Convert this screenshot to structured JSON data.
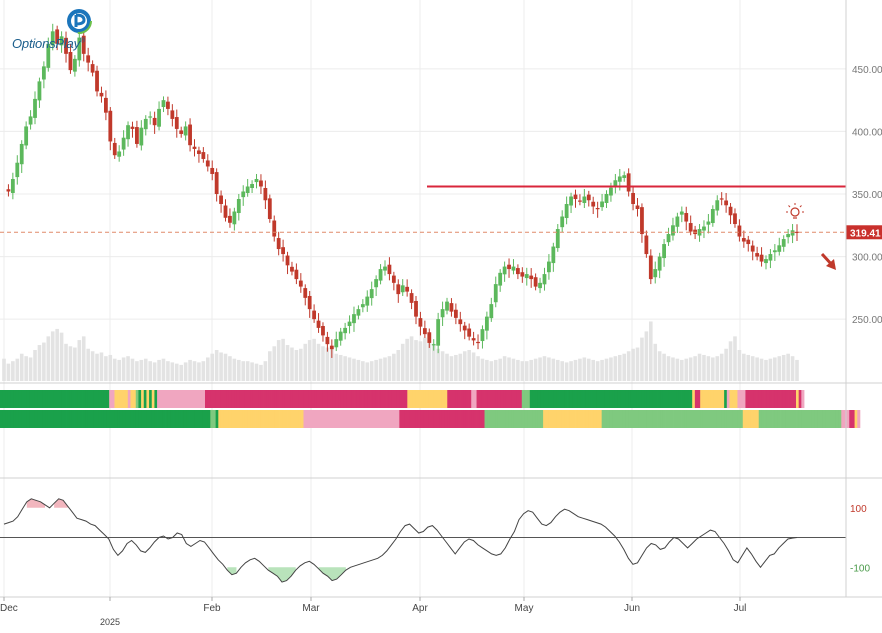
{
  "brand": {
    "name": "OptionsPlay",
    "mark": "®"
  },
  "colors": {
    "up": "#5cb85c",
    "down": "#c0392b",
    "resistance": "#d9263b",
    "current_line": "#e08a6a",
    "price_tag": "#c9302c",
    "volume": "#e3e3e3",
    "hot": "#d6336c",
    "pink": "#f0a6c0",
    "yellow": "#ffd36b",
    "green": "#1aa14b",
    "lightgreen": "#7fc97f",
    "cci_overbought": "#f2b6be",
    "cci_oversold": "#b9e3bb"
  },
  "chart_data": [
    {
      "type": "candlestick",
      "title": "",
      "ylim": [
        200,
        500
      ],
      "y_ticks": [
        "450.00",
        "400.00",
        "350.00",
        "300.00",
        "250.00"
      ],
      "y_tick_values": [
        450,
        400,
        350,
        300,
        250
      ],
      "x_labels": [
        "Dec",
        "2025",
        "Feb",
        "Mar",
        "Apr",
        "May",
        "Jun",
        "Jul"
      ],
      "last_price_label": "319.41",
      "last_price": 319.41,
      "resistance_level": 356,
      "resistance_start": "2025-04-01",
      "closes": [
        355,
        352,
        362,
        375,
        390,
        404,
        412,
        426,
        440,
        452,
        470,
        480,
        470,
        476,
        462,
        449,
        458,
        475,
        462,
        455,
        447,
        432,
        428,
        415,
        392,
        381,
        384,
        395,
        405,
        402,
        390,
        403,
        410,
        412,
        405,
        418,
        425,
        418,
        410,
        402,
        398,
        404,
        389,
        386,
        382,
        378,
        372,
        366,
        350,
        342,
        331,
        327,
        336,
        346,
        352,
        356,
        358,
        362,
        356,
        345,
        330,
        316,
        306,
        302,
        293,
        288,
        282,
        276,
        267,
        258,
        250,
        243,
        237,
        230,
        226,
        234,
        240,
        243,
        248,
        254,
        258,
        262,
        268,
        274,
        282,
        290,
        292,
        286,
        279,
        270,
        277,
        272,
        263,
        252,
        244,
        238,
        231,
        230,
        250,
        258,
        264,
        256,
        251,
        246,
        241,
        236,
        233,
        231,
        242,
        252,
        262,
        278,
        287,
        292,
        290,
        292,
        286,
        284,
        286,
        282,
        276,
        279,
        286,
        296,
        308,
        322,
        332,
        342,
        348,
        346,
        344,
        348,
        345,
        340,
        338,
        344,
        350,
        355,
        361,
        364,
        365,
        352,
        342,
        338,
        318,
        302,
        282,
        290,
        300,
        310,
        318,
        325,
        332,
        336,
        328,
        320,
        318,
        322,
        324,
        328,
        338,
        345,
        346,
        341,
        333,
        326,
        316,
        312,
        310,
        304,
        300,
        296,
        298,
        302,
        305,
        309,
        314,
        318,
        321,
        319.41
      ],
      "volumes": [
        18,
        14,
        16,
        18,
        22,
        20,
        19,
        25,
        29,
        31,
        36,
        40,
        42,
        39,
        30,
        28,
        27,
        33,
        36,
        26,
        24,
        22,
        23,
        20,
        21,
        18,
        17,
        19,
        20,
        18,
        16,
        17,
        18,
        16,
        15,
        17,
        18,
        16,
        15,
        14,
        13,
        15,
        17,
        16,
        15,
        16,
        19,
        22,
        25,
        23,
        22,
        20,
        18,
        17,
        16,
        16,
        15,
        14,
        13,
        16,
        24,
        28,
        33,
        34,
        29,
        27,
        25,
        26,
        30,
        33,
        34,
        30,
        28,
        27,
        26,
        22,
        21,
        20,
        19,
        18,
        17,
        16,
        15,
        16,
        17,
        18,
        19,
        20,
        22,
        25,
        30,
        34,
        36,
        33,
        32,
        35,
        38,
        30,
        26,
        24,
        22,
        20,
        21,
        22,
        24,
        25,
        23,
        20,
        18,
        17,
        16,
        17,
        18,
        20,
        19,
        18,
        17,
        16,
        16,
        17,
        18,
        19,
        20,
        19,
        18,
        17,
        16,
        15,
        16,
        17,
        18,
        19,
        18,
        17,
        16,
        17,
        18,
        19,
        20,
        21,
        22,
        24,
        26,
        27,
        35,
        40,
        48,
        30,
        24,
        22,
        20,
        19,
        18,
        17,
        18,
        19,
        20,
        22,
        21,
        20,
        19,
        20,
        22,
        26,
        32,
        36,
        25,
        22,
        21,
        20,
        19,
        18,
        17,
        18,
        19,
        20,
        21,
        22,
        20,
        17
      ],
      "volume_max": 50
    },
    {
      "type": "heatmap",
      "rows": 2,
      "stripe_colors": [
        "green",
        "lightgreen",
        "pink",
        "yellow",
        "hot",
        "hot",
        "pink"
      ],
      "row1": "GGGGGGGGGGGGGGGGGGGGGGGGGGGGGGGGGGGGGGGGGPPYYYYYPYYLGYGYGYGPPPPPPPPPPPPPPPPPPHHHHHHHHHHHHHHHHHHHHHHHHHHHHHHHHHHHHHHHHHHHHHHHHHHHHHHHHHHHHHHHHHHHHHHHHHHHHYYYYYYYYYYYYYYYHHHHHHHHHPPHHHHHHHHHHHHHHHHHLLLGGGGGGGGGGGGGGGGGGGGGGGGGGGGGGGGGGGGGGGGGGGGGGGGGGGGGGGGGGGGGYHHYYYYYYYYYGPYYYPPPHHHHHHHHHHHHHHHHHHHYHP",
      "row2": "GGGGGGGGGGGGGGGGGGGGGGGGGGGGGGGGGGGGGGGGGGGGGGGGGGGGGGGGGGGGGGGGGGGGGGGGGGGGGGGLLGYYYYYYYYYYYYYYYYYYYYYYYYYYYYYYYYPPPPPPPPPPPPPPPPPPPPPPPPPPPPPPPPPPPPHHHHHHHHHHHHHHHHHHHHHHHHHHHHHHHHLLLLLLLLLLLLLLLLLLLLLLYYYYYYYYYYYYYYYYYYYYYYLLLLLLLLLLLLLLLLLLLLLLLLLLLLLLLLLLLLLLLLLLLLLLLLLLLLLYYYYYYLLLLLLLLLLLLLLLLLLLLLLLLLLLLLLLPPPHHYP"
    },
    {
      "type": "line",
      "ylim": [
        -200,
        200
      ],
      "y_ticks": [
        "100",
        "-100"
      ],
      "y_tick_values": [
        100,
        -100
      ],
      "values": [
        45,
        50,
        55,
        70,
        95,
        120,
        130,
        125,
        120,
        110,
        100,
        115,
        130,
        125,
        105,
        85,
        65,
        60,
        55,
        45,
        40,
        25,
        10,
        -5,
        -40,
        -60,
        -45,
        -20,
        -10,
        -25,
        -45,
        -50,
        -35,
        -15,
        0,
        5,
        -5,
        0,
        15,
        10,
        -20,
        -30,
        -20,
        -10,
        -15,
        -35,
        -55,
        -75,
        -90,
        -110,
        -125,
        -120,
        -100,
        -85,
        -75,
        -70,
        -80,
        -95,
        -110,
        -120,
        -130,
        -150,
        -145,
        -130,
        -110,
        -95,
        -85,
        -80,
        -90,
        -105,
        -120,
        -130,
        -145,
        -140,
        -125,
        -110,
        -100,
        -95,
        -90,
        -85,
        -80,
        -75,
        -70,
        -60,
        -45,
        -25,
        -5,
        20,
        40,
        45,
        30,
        15,
        20,
        35,
        40,
        25,
        5,
        -15,
        -35,
        -55,
        -35,
        -15,
        -5,
        -10,
        -25,
        -35,
        -45,
        -55,
        -60,
        -55,
        -35,
        -5,
        20,
        60,
        80,
        90,
        85,
        65,
        45,
        40,
        50,
        70,
        85,
        95,
        90,
        80,
        70,
        65,
        60,
        55,
        50,
        45,
        35,
        20,
        5,
        -15,
        -40,
        -70,
        -90,
        -85,
        -60,
        -35,
        -20,
        -25,
        -40,
        -35,
        -15,
        0,
        -5,
        -20,
        -35,
        -20,
        -5,
        5,
        15,
        25,
        20,
        0,
        -20,
        -45,
        -75,
        -85,
        -60,
        -35,
        -55,
        -80,
        -100,
        -80,
        -60,
        -55,
        -35,
        -20,
        -5,
        -2,
        0
      ]
    }
  ]
}
